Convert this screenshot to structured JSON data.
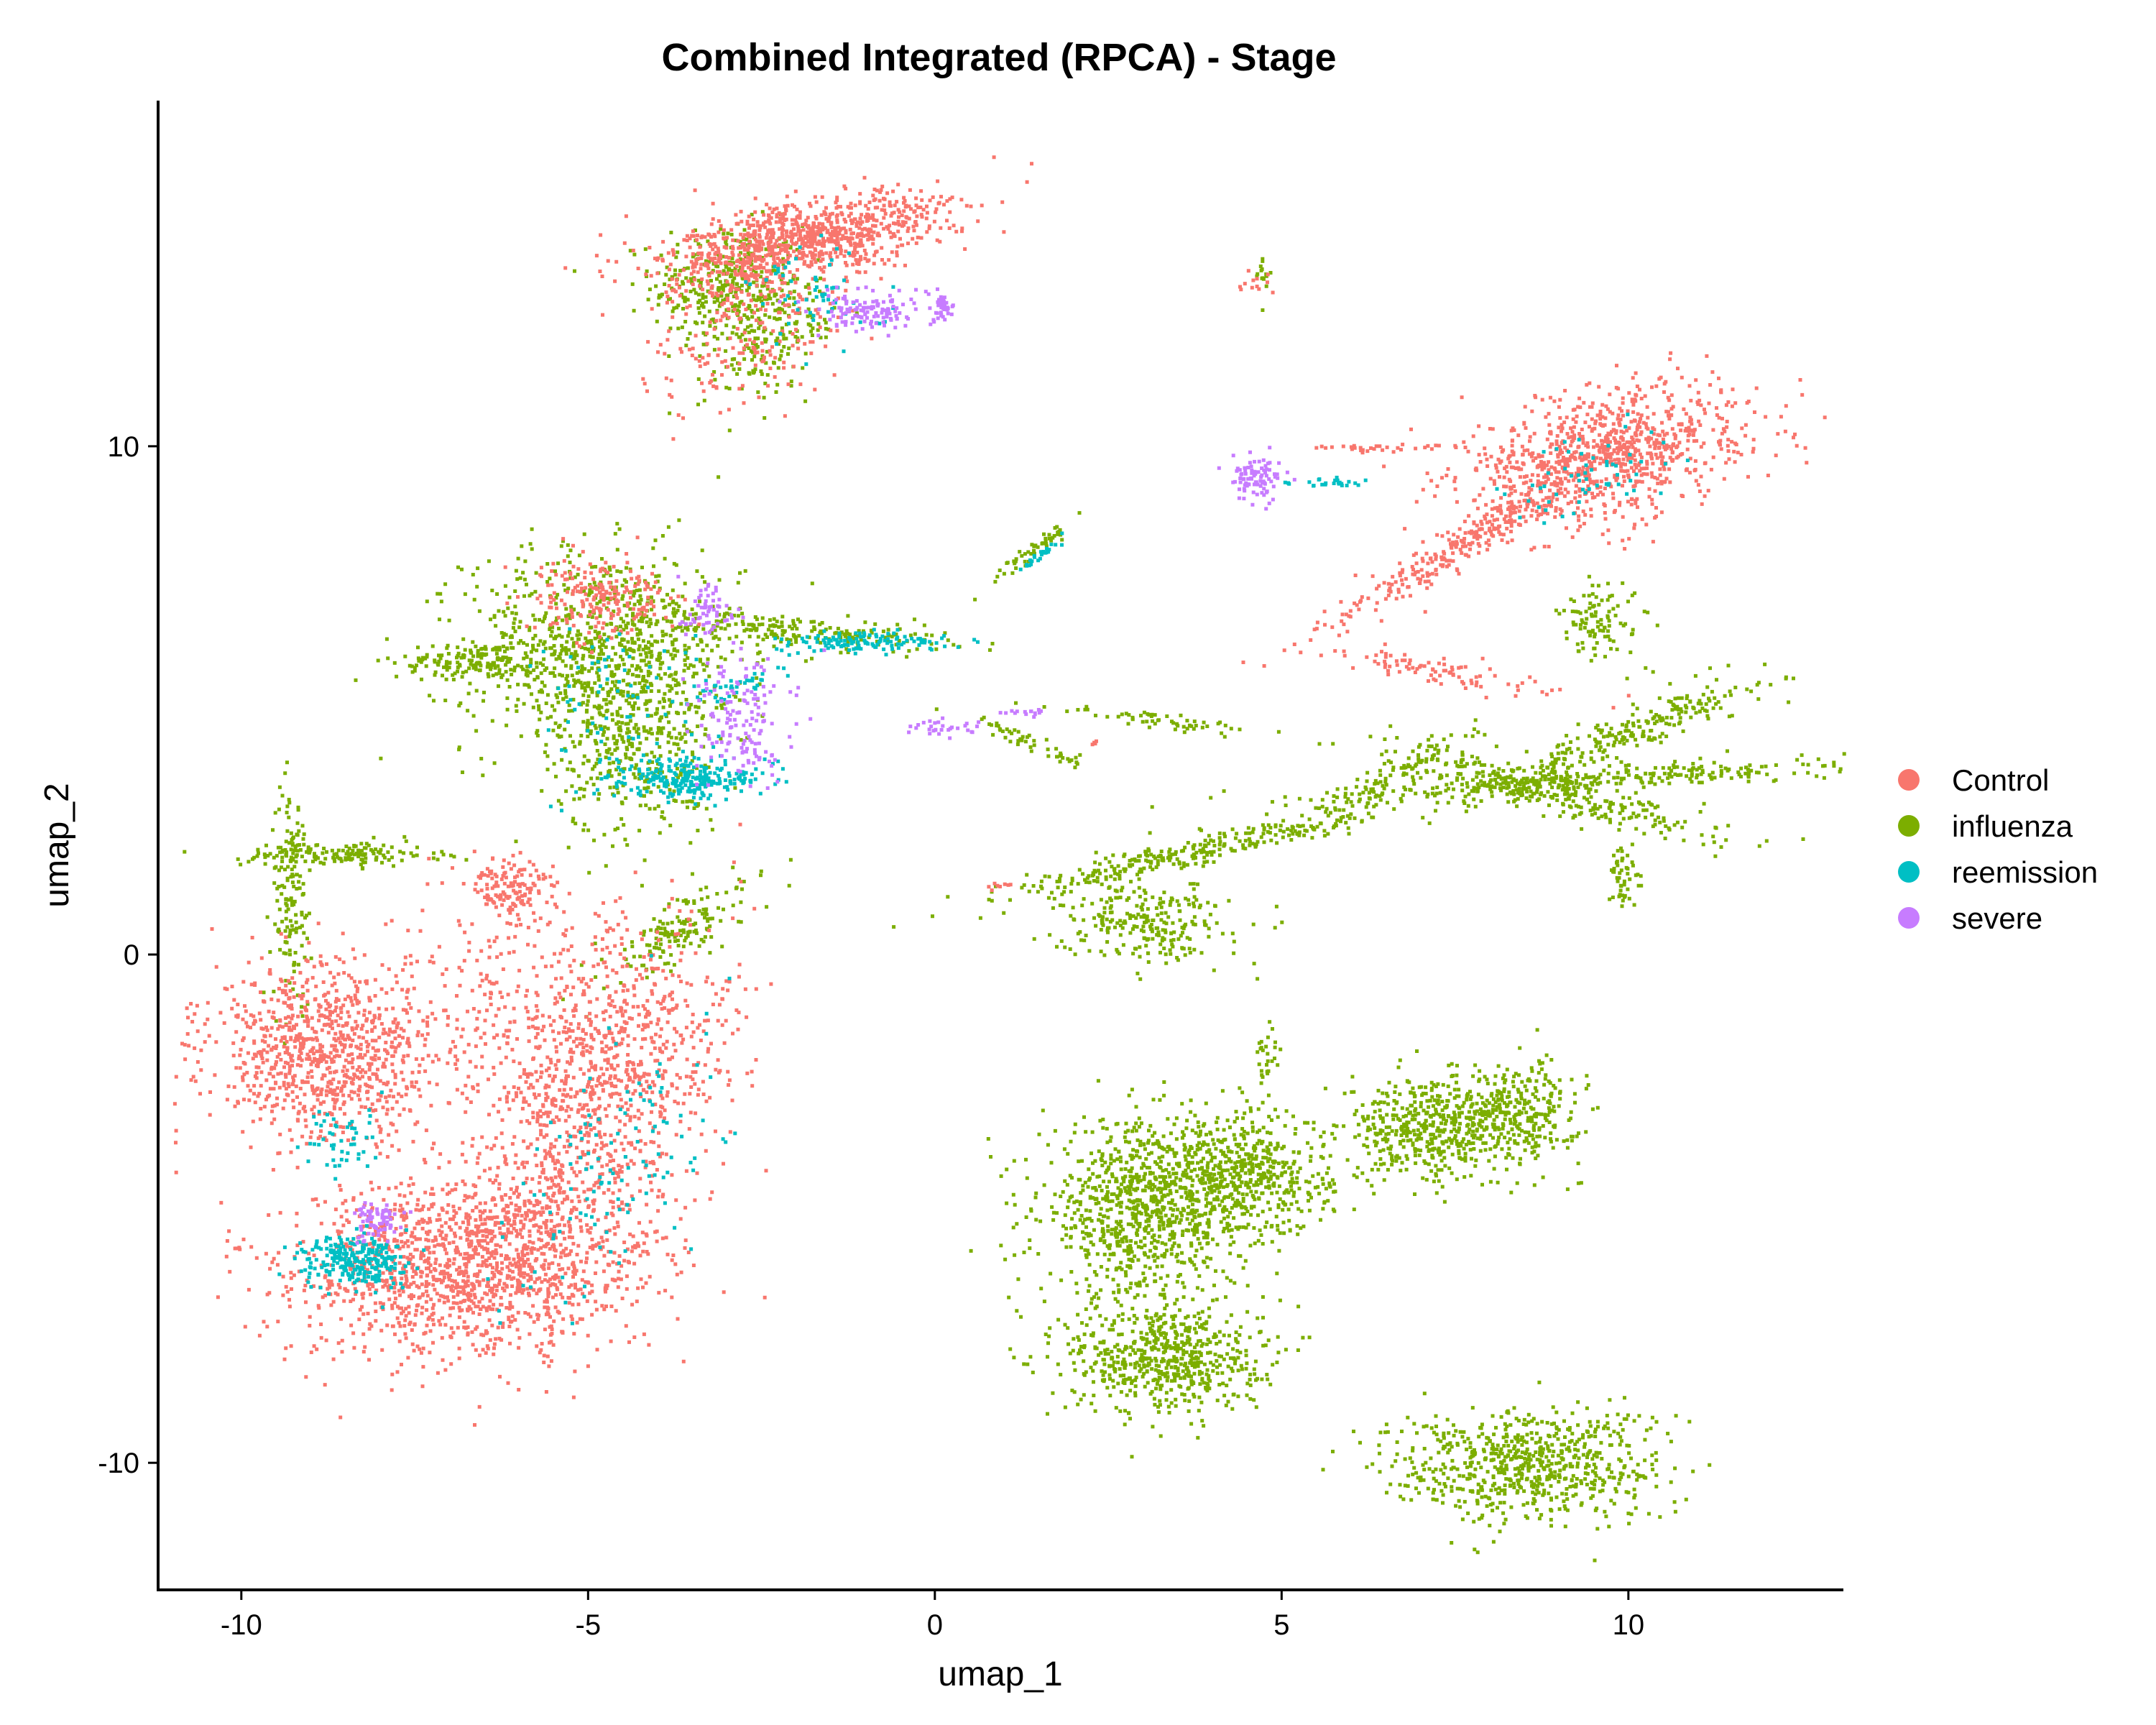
{
  "chart_data": {
    "type": "scatter",
    "title": "Combined Integrated (RPCA) - Stage",
    "xlabel": "umap_1",
    "ylabel": "umap_2",
    "xlim": [
      -11.2,
      13.1
    ],
    "ylim": [
      -12.5,
      16.8
    ],
    "xticks": [
      -10,
      -5,
      0,
      5,
      10
    ],
    "yticks": [
      -10,
      0,
      10
    ],
    "grid": false,
    "legend_position": "right",
    "series": [
      {
        "name": "Control",
        "color": "#F8766D",
        "clusters": [
          {
            "cx": -1.9,
            "cy": 14.1,
            "sx": 1.1,
            "sy": 0.35,
            "angle": 15,
            "n": 900
          },
          {
            "cx": -2.6,
            "cy": 12.6,
            "sx": 0.6,
            "sy": 1.0,
            "angle": -30,
            "n": 250
          },
          {
            "cx": 9.7,
            "cy": 9.9,
            "sx": 1.05,
            "sy": 0.6,
            "angle": 20,
            "n": 900
          },
          {
            "cx": 7.7,
            "cy": 8.2,
            "sx": 1.3,
            "sy": 0.18,
            "angle": 40,
            "n": 300
          },
          {
            "cx": 7.3,
            "cy": 5.6,
            "sx": 0.15,
            "sy": 0.9,
            "angle": 75,
            "n": 90
          },
          {
            "cx": 6.4,
            "cy": 10.0,
            "sx": 0.5,
            "sy": 0.05,
            "angle": 0,
            "n": 30
          },
          {
            "cx": 4.6,
            "cy": 13.2,
            "sx": 0.1,
            "sy": 0.12,
            "angle": 0,
            "n": 12
          },
          {
            "cx": -8.8,
            "cy": -1.9,
            "sx": 0.85,
            "sy": 0.85,
            "angle": 0,
            "n": 900
          },
          {
            "cx": -6.7,
            "cy": -6.1,
            "sx": 1.3,
            "sy": 0.9,
            "angle": 10,
            "n": 1500
          },
          {
            "cx": -4.8,
            "cy": -2.8,
            "sx": 0.8,
            "sy": 1.7,
            "angle": -20,
            "n": 900
          },
          {
            "cx": -4.8,
            "cy": 7.1,
            "sx": 0.5,
            "sy": 0.4,
            "angle": 0,
            "n": 200
          },
          {
            "cx": -6.1,
            "cy": 1.3,
            "sx": 0.35,
            "sy": 0.3,
            "angle": 0,
            "n": 150
          },
          {
            "cx": -5.9,
            "cy": -1.0,
            "sx": 1.1,
            "sy": 0.9,
            "angle": 0,
            "n": 300
          },
          {
            "cx": 0.9,
            "cy": 1.4,
            "sx": 0.08,
            "sy": 0.05,
            "angle": 0,
            "n": 8
          },
          {
            "cx": 2.3,
            "cy": 4.2,
            "sx": 0.05,
            "sy": 0.05,
            "angle": 0,
            "n": 5
          }
        ]
      },
      {
        "name": "influenza",
        "color": "#7CAE00",
        "clusters": [
          {
            "cx": -3.0,
            "cy": 13.2,
            "sx": 0.55,
            "sy": 0.6,
            "angle": 0,
            "n": 350
          },
          {
            "cx": -2.4,
            "cy": 12.0,
            "sx": 0.35,
            "sy": 0.6,
            "angle": -30,
            "n": 150
          },
          {
            "cx": 4.7,
            "cy": 13.4,
            "sx": 0.06,
            "sy": 0.25,
            "angle": 0,
            "n": 15
          },
          {
            "cx": -4.8,
            "cy": 6.0,
            "sx": 1.0,
            "sy": 1.0,
            "angle": 0,
            "n": 900
          },
          {
            "cx": -6.6,
            "cy": 5.8,
            "sx": 0.6,
            "sy": 0.2,
            "angle": 0,
            "n": 150
          },
          {
            "cx": -2.0,
            "cy": 6.4,
            "sx": 1.1,
            "sy": 0.15,
            "angle": -5,
            "n": 200
          },
          {
            "cx": -4.3,
            "cy": 4.0,
            "sx": 0.6,
            "sy": 0.9,
            "angle": 0,
            "n": 300
          },
          {
            "cx": -9.3,
            "cy": 1.2,
            "sx": 0.15,
            "sy": 1.1,
            "angle": 0,
            "n": 150
          },
          {
            "cx": -8.6,
            "cy": 2.0,
            "sx": 0.7,
            "sy": 0.12,
            "angle": 0,
            "n": 150
          },
          {
            "cx": -3.7,
            "cy": 0.5,
            "sx": 0.7,
            "sy": 0.25,
            "angle": 40,
            "n": 150
          },
          {
            "cx": 3.0,
            "cy": -5.0,
            "sx": 0.75,
            "sy": 0.85,
            "angle": 0,
            "n": 900
          },
          {
            "cx": 4.5,
            "cy": -4.3,
            "sx": 0.6,
            "sy": 0.6,
            "angle": 0,
            "n": 500
          },
          {
            "cx": 7.0,
            "cy": -3.4,
            "sx": 0.55,
            "sy": 0.5,
            "angle": 0,
            "n": 400
          },
          {
            "cx": 8.3,
            "cy": -3.1,
            "sx": 0.5,
            "sy": 0.5,
            "angle": 0,
            "n": 350
          },
          {
            "cx": 3.3,
            "cy": -7.9,
            "sx": 0.7,
            "sy": 0.55,
            "angle": 0,
            "n": 600
          },
          {
            "cx": 8.5,
            "cy": -10.0,
            "sx": 1.0,
            "sy": 0.55,
            "angle": 0,
            "n": 700
          },
          {
            "cx": 3.9,
            "cy": 2.1,
            "sx": 1.6,
            "sy": 0.15,
            "angle": 18,
            "n": 300
          },
          {
            "cx": 3.0,
            "cy": 0.7,
            "sx": 0.6,
            "sy": 0.4,
            "angle": 0,
            "n": 250
          },
          {
            "cx": 8.9,
            "cy": 3.2,
            "sx": 1.3,
            "sy": 0.2,
            "angle": -20,
            "n": 300
          },
          {
            "cx": 9.6,
            "cy": 3.5,
            "sx": 2.0,
            "sy": 0.12,
            "angle": 5,
            "n": 300
          },
          {
            "cx": 10.0,
            "cy": 4.4,
            "sx": 1.2,
            "sy": 0.2,
            "angle": 30,
            "n": 250
          },
          {
            "cx": 9.6,
            "cy": 6.6,
            "sx": 0.3,
            "sy": 0.4,
            "angle": 0,
            "n": 100
          },
          {
            "cx": 9.9,
            "cy": 1.5,
            "sx": 0.15,
            "sy": 0.3,
            "angle": 0,
            "n": 50
          },
          {
            "cx": 1.4,
            "cy": 4.2,
            "sx": 0.5,
            "sy": 0.08,
            "angle": -30,
            "n": 50
          },
          {
            "cx": 1.4,
            "cy": 8.0,
            "sx": 0.4,
            "sy": 0.06,
            "angle": 45,
            "n": 50
          },
          {
            "cx": 4.8,
            "cy": -2.0,
            "sx": 0.1,
            "sy": 0.4,
            "angle": 0,
            "n": 30
          },
          {
            "cx": 3.3,
            "cy": 4.6,
            "sx": 0.8,
            "sy": 0.08,
            "angle": -10,
            "n": 60
          },
          {
            "cx": 6.5,
            "cy": 3.5,
            "sx": 0.9,
            "sy": 0.15,
            "angle": 35,
            "n": 80
          }
        ]
      },
      {
        "name": "reemission",
        "color": "#00BFC4",
        "clusters": [
          {
            "cx": -3.6,
            "cy": 3.5,
            "sx": 0.5,
            "sy": 0.2,
            "angle": 0,
            "n": 250
          },
          {
            "cx": -8.4,
            "cy": -6.0,
            "sx": 0.4,
            "sy": 0.25,
            "angle": 0,
            "n": 250
          },
          {
            "cx": -1.0,
            "cy": 6.2,
            "sx": 0.6,
            "sy": 0.1,
            "angle": 0,
            "n": 120
          },
          {
            "cx": -2.8,
            "cy": 5.4,
            "sx": 0.5,
            "sy": 0.1,
            "angle": 30,
            "n": 40
          },
          {
            "cx": -4.6,
            "cy": 4.8,
            "sx": 0.7,
            "sy": 0.9,
            "angle": 0,
            "n": 80
          },
          {
            "cx": -1.8,
            "cy": 13.0,
            "sx": 0.5,
            "sy": 0.6,
            "angle": 20,
            "n": 60
          },
          {
            "cx": 1.5,
            "cy": 7.9,
            "sx": 0.25,
            "sy": 0.04,
            "angle": 45,
            "n": 25
          },
          {
            "cx": 9.6,
            "cy": 9.5,
            "sx": 0.7,
            "sy": 0.4,
            "angle": 20,
            "n": 60
          },
          {
            "cx": 5.6,
            "cy": 9.3,
            "sx": 0.3,
            "sy": 0.04,
            "angle": 0,
            "n": 25
          },
          {
            "cx": -8.6,
            "cy": -3.5,
            "sx": 0.3,
            "sy": 0.4,
            "angle": 0,
            "n": 50
          },
          {
            "cx": -4.5,
            "cy": -4.0,
            "sx": 0.6,
            "sy": 1.4,
            "angle": -20,
            "n": 120
          }
        ]
      },
      {
        "name": "severe",
        "color": "#C77CFF",
        "clusters": [
          {
            "cx": -0.9,
            "cy": 12.7,
            "sx": 0.45,
            "sy": 0.2,
            "angle": 0,
            "n": 120
          },
          {
            "cx": 0.1,
            "cy": 12.8,
            "sx": 0.1,
            "sy": 0.15,
            "angle": 0,
            "n": 40
          },
          {
            "cx": 4.6,
            "cy": 9.4,
            "sx": 0.2,
            "sy": 0.2,
            "angle": 0,
            "n": 90
          },
          {
            "cx": -2.8,
            "cy": 4.6,
            "sx": 0.35,
            "sy": 0.6,
            "angle": 0,
            "n": 150
          },
          {
            "cx": -3.3,
            "cy": 6.8,
            "sx": 0.2,
            "sy": 0.25,
            "angle": 0,
            "n": 60
          },
          {
            "cx": -8.1,
            "cy": -5.2,
            "sx": 0.15,
            "sy": 0.2,
            "angle": 0,
            "n": 70
          },
          {
            "cx": 0.1,
            "cy": 4.5,
            "sx": 0.3,
            "sy": 0.08,
            "angle": 0,
            "n": 30
          },
          {
            "cx": 1.3,
            "cy": 4.8,
            "sx": 0.15,
            "sy": 0.05,
            "angle": 0,
            "n": 15
          }
        ]
      }
    ]
  }
}
